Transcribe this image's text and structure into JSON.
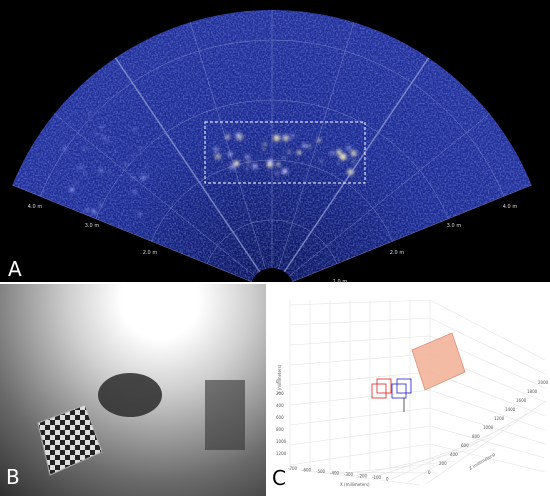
{
  "panel_a": {
    "label": "A",
    "range_labels_left": [
      "4.0 m",
      "3.0 m",
      "2.0 m"
    ],
    "range_labels_right": [
      "1.0 m",
      "2.0 m",
      "3.0 m",
      "4.0 m"
    ]
  },
  "panel_b": {
    "label": "B"
  },
  "panel_c": {
    "label": "C",
    "y_axis_label": "Y (millimeters)",
    "x_axis_label": "X (millimeters)",
    "z_axis_label": "Z (millimeters)",
    "y_ticks": [
      "0",
      "200",
      "400",
      "600",
      "800",
      "1000",
      "1200"
    ],
    "x_ticks": [
      "-700",
      "-600",
      "-500",
      "-400",
      "-300",
      "-200",
      "-100",
      "0"
    ],
    "z_ticks": [
      "0",
      "200",
      "400",
      "600",
      "800",
      "1000",
      "1200",
      "1400",
      "1600",
      "1800",
      "2000"
    ]
  }
}
